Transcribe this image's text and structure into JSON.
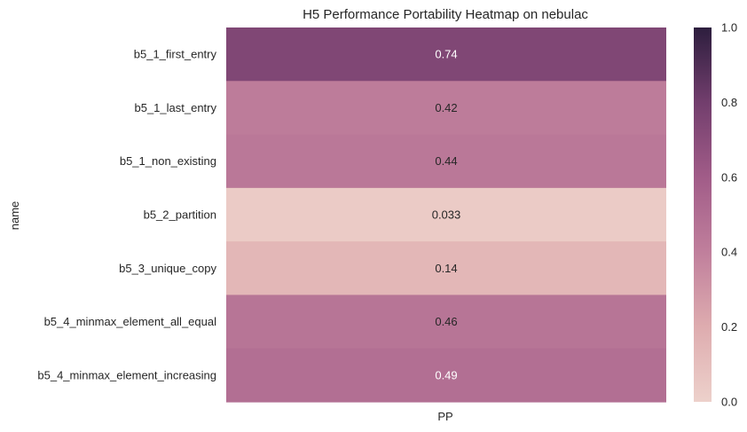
{
  "chart_data": {
    "type": "heatmap",
    "title": "H5 Performance Portability Heatmap on nebulac",
    "ylabel": "name",
    "xlabel": "",
    "x_categories": [
      "PP"
    ],
    "y_categories": [
      "b5_1_first_entry",
      "b5_1_last_entry",
      "b5_1_non_existing",
      "b5_2_partition",
      "b5_3_unique_copy",
      "b5_4_minmax_element_all_equal",
      "b5_4_minmax_element_increasing"
    ],
    "values": [
      0.74,
      0.42,
      0.44,
      0.033,
      0.14,
      0.46,
      0.49
    ],
    "annotations": [
      "0.74",
      "0.42",
      "0.44",
      "0.033",
      "0.14",
      "0.46",
      "0.49"
    ],
    "colorbar": {
      "vmin": 0.0,
      "vmax": 1.0,
      "ticks": [
        0.0,
        0.2,
        0.4,
        0.6,
        0.8,
        1.0
      ],
      "tick_labels": [
        "0.0",
        "0.2",
        "0.4",
        "0.6",
        "0.8",
        "1.0"
      ],
      "colormap_stops": [
        {
          "v": 0.0,
          "color": "#edd1cb"
        },
        {
          "v": 0.2,
          "color": "#deacaf"
        },
        {
          "v": 0.4,
          "color": "#c07f9c"
        },
        {
          "v": 0.6,
          "color": "#a15c88"
        },
        {
          "v": 0.8,
          "color": "#723e6d"
        },
        {
          "v": 1.0,
          "color": "#2d1e3e"
        }
      ]
    }
  }
}
